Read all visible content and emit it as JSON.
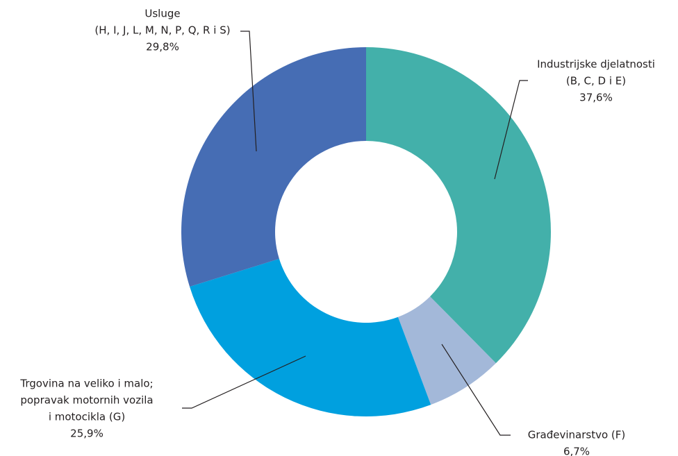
{
  "chart_data": {
    "type": "donut",
    "categories": [
      [
        "Industrijske djelatnosti",
        "(B, C, D i E)"
      ],
      [
        "Građevinarstvo (F)"
      ],
      [
        "Trgovina na veliko i malo;",
        "popravak motornih vozila",
        "i motocikla  (G)"
      ],
      [
        "Usluge",
        "(H, I, J, L, M, N, P, Q, R i S)"
      ]
    ],
    "values": [
      37.6,
      6.7,
      25.9,
      29.8
    ],
    "value_labels": [
      "37,6%",
      "6,7%",
      "25,9%",
      "29,8%"
    ],
    "colors": [
      "#43b0aa",
      "#a3b8d9",
      "#00a0df",
      "#466db4"
    ]
  }
}
